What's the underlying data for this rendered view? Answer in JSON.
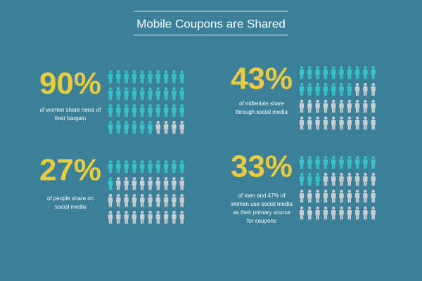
{
  "title": "Mobile Coupons are Shared",
  "stats": [
    {
      "value": 90,
      "value_label": "90%",
      "text": [
        "of women share news of",
        "their bargain"
      ]
    },
    {
      "value": 43,
      "value_label": "43%",
      "text": [
        "of millenials share",
        "through social media"
      ]
    },
    {
      "value": 27,
      "value_label": "27%",
      "text": [
        "of  people share on",
        "social media"
      ]
    },
    {
      "value": 33,
      "value_label": "33%",
      "text": [
        "of men and 47% of",
        "women use social media",
        "as their primary source",
        "for coupons"
      ]
    }
  ]
}
